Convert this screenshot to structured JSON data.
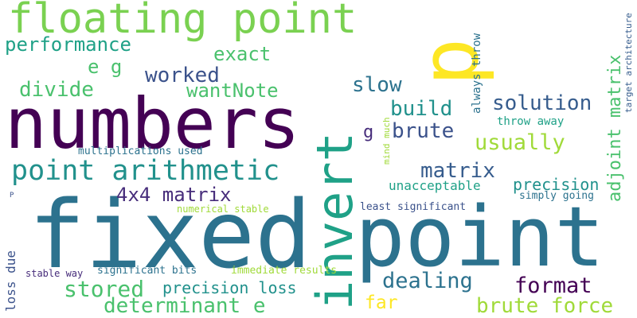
{
  "palette": {
    "yellow": "#fde725",
    "light_green": "#a0da39",
    "green": "#4ac16d",
    "lime": "#7ad151",
    "teal": "#1fa187",
    "teal_blue": "#21918c",
    "blue": "#2c728e",
    "dark_blue": "#365c8d",
    "indigo": "#3b528b",
    "purple": "#440154",
    "violet": "#472d7b"
  },
  "words": [
    {
      "text": "p p"
    },
    {
      "text": "floating point"
    },
    {
      "text": "numbers"
    },
    {
      "text": "fixed"
    },
    {
      "text": "point"
    },
    {
      "text": "invert"
    },
    {
      "text": "point arithmetic"
    },
    {
      "text": "performance"
    },
    {
      "text": "exact"
    },
    {
      "text": "e g"
    },
    {
      "text": "worked"
    },
    {
      "text": "wantNote"
    },
    {
      "text": "divide"
    },
    {
      "text": "slow"
    },
    {
      "text": "build"
    },
    {
      "text": "solution"
    },
    {
      "text": "brute"
    },
    {
      "text": "g"
    },
    {
      "text": "usually"
    },
    {
      "text": "throw away"
    },
    {
      "text": "mind much"
    },
    {
      "text": "always throw"
    },
    {
      "text": "adjoint matrix"
    },
    {
      "text": "target architecture"
    },
    {
      "text": "multiplications used"
    },
    {
      "text": "matrix"
    },
    {
      "text": "4x4 matrix"
    },
    {
      "text": "unacceptable"
    },
    {
      "text": "precision"
    },
    {
      "text": "simply going"
    },
    {
      "text": "numerical stable"
    },
    {
      "text": "least significant"
    },
    {
      "text": "P"
    },
    {
      "text": "loss due"
    },
    {
      "text": "stable way"
    },
    {
      "text": "significant bits"
    },
    {
      "text": "immediate results"
    },
    {
      "text": "dealing"
    },
    {
      "text": "stored"
    },
    {
      "text": "precision loss"
    },
    {
      "text": "format"
    },
    {
      "text": "determinant e"
    },
    {
      "text": "far"
    },
    {
      "text": "brute force"
    }
  ]
}
